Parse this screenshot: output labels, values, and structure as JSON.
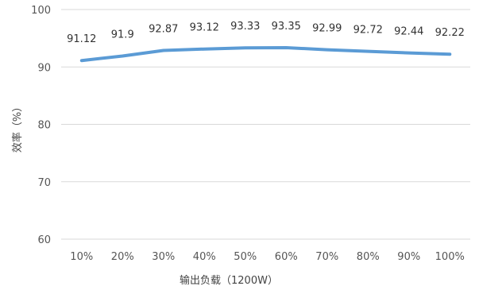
{
  "chart_data": {
    "type": "line",
    "categories": [
      "10%",
      "20%",
      "30%",
      "40%",
      "50%",
      "60%",
      "70%",
      "80%",
      "90%",
      "100%"
    ],
    "series": [
      {
        "values": [
          91.12,
          91.9,
          92.87,
          93.12,
          93.33,
          93.35,
          92.99,
          92.72,
          92.44,
          92.22
        ],
        "color": "#5b9bd5"
      }
    ],
    "data_labels": [
      "91.12",
      "91.9",
      "92.87",
      "93.12",
      "93.33",
      "93.35",
      "92.99",
      "92.72",
      "92.44",
      "92.22"
    ],
    "xlabel": "输出负载（1200W）",
    "ylabel": "效率（%）",
    "ylim": [
      60,
      100
    ],
    "yticks": [
      "60",
      "70",
      "80",
      "90",
      "100"
    ],
    "grid": true,
    "gridline_color": "#d9d9d9"
  }
}
